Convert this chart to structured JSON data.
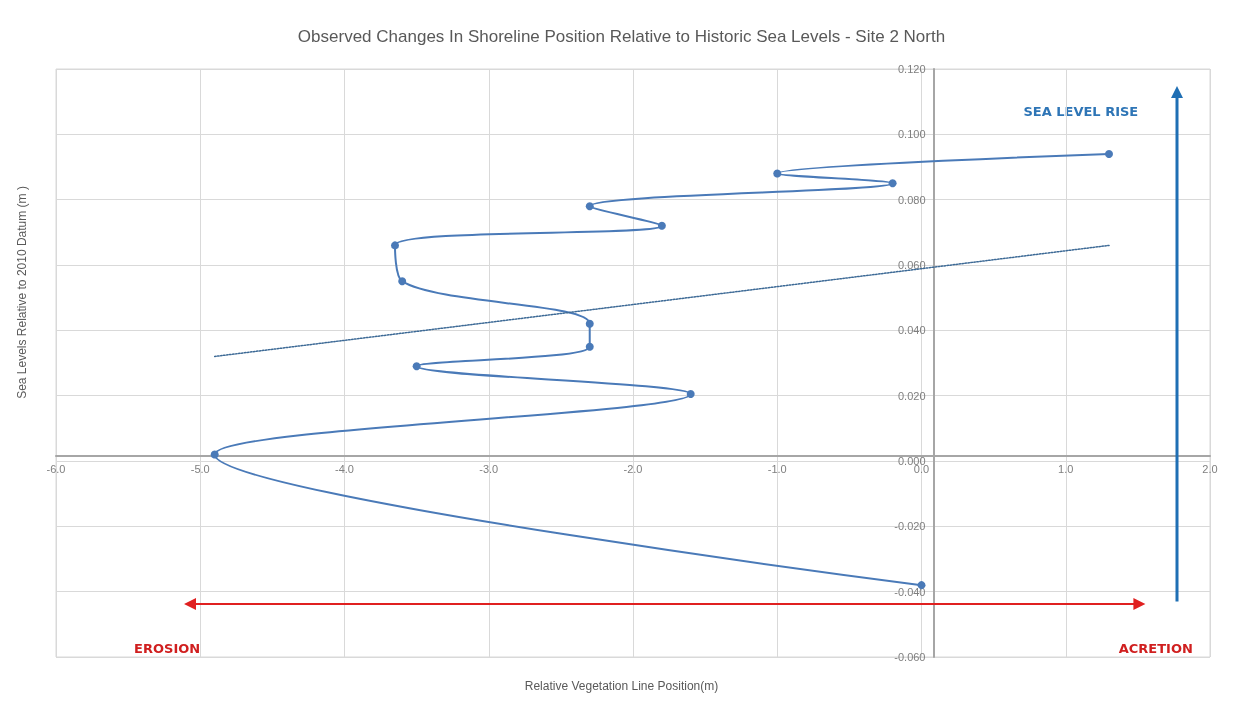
{
  "chart_data": {
    "type": "line",
    "title": "Observed Changes In Shoreline Position Relative to Historic Sea Levels - Site 2 North",
    "xlabel": "Relative Vegetation Line Position(m)",
    "ylabel": "Sea Levels Relative to 2010 Datum (m )",
    "series": [
      {
        "color": "#4a7ab8",
        "marker": "circle",
        "line_style": "solid",
        "x": [
          0,
          -4.9,
          -1.6,
          -3.5,
          -2.3,
          -2.3,
          -3.6,
          -3.65,
          -1.8,
          -2.3,
          -0.2,
          -1.0,
          1.3
        ],
        "values": [
          -0.038,
          0.002,
          0.0205,
          0.029,
          0.035,
          0.042,
          0.055,
          0.066,
          0.072,
          0.078,
          0.085,
          0.088,
          0.094
        ]
      },
      {
        "color": "#3d6a96",
        "marker": "none",
        "line_style": "dotted",
        "x": [
          -4.9,
          1.3
        ],
        "values": [
          0.032,
          0.066
        ]
      }
    ],
    "xlim": [
      -6,
      2
    ],
    "xticks": [
      {
        "value": -6,
        "label": "-6.0"
      },
      {
        "value": -5,
        "label": "-5.0"
      },
      {
        "value": -4,
        "label": "-4.0"
      },
      {
        "value": -3,
        "label": "-3.0"
      },
      {
        "value": -2,
        "label": "-2.0"
      },
      {
        "value": -1,
        "label": "-1.0"
      },
      {
        "value": 0,
        "label": "0.0"
      },
      {
        "value": 1,
        "label": "1.0"
      },
      {
        "value": 2,
        "label": "2.0"
      }
    ],
    "ylim": [
      -0.06,
      0.12
    ],
    "yticks": [
      {
        "value": -0.06,
        "label": "-0.060"
      },
      {
        "value": -0.04,
        "label": "-0.040"
      },
      {
        "value": -0.02,
        "label": "-0.020"
      },
      {
        "value": 0,
        "label": "0.000"
      },
      {
        "value": 0.02,
        "label": "0.020"
      },
      {
        "value": 0.04,
        "label": "0.040"
      },
      {
        "value": 0.06,
        "label": "0.060"
      },
      {
        "value": 0.08,
        "label": "0.080"
      },
      {
        "value": 0.1,
        "label": "0.100"
      },
      {
        "value": 0.12,
        "label": "0.120"
      }
    ],
    "grid": true,
    "annotations": [
      "SEA LEVEL RISE",
      "EROSION",
      "ACRETION"
    ]
  }
}
